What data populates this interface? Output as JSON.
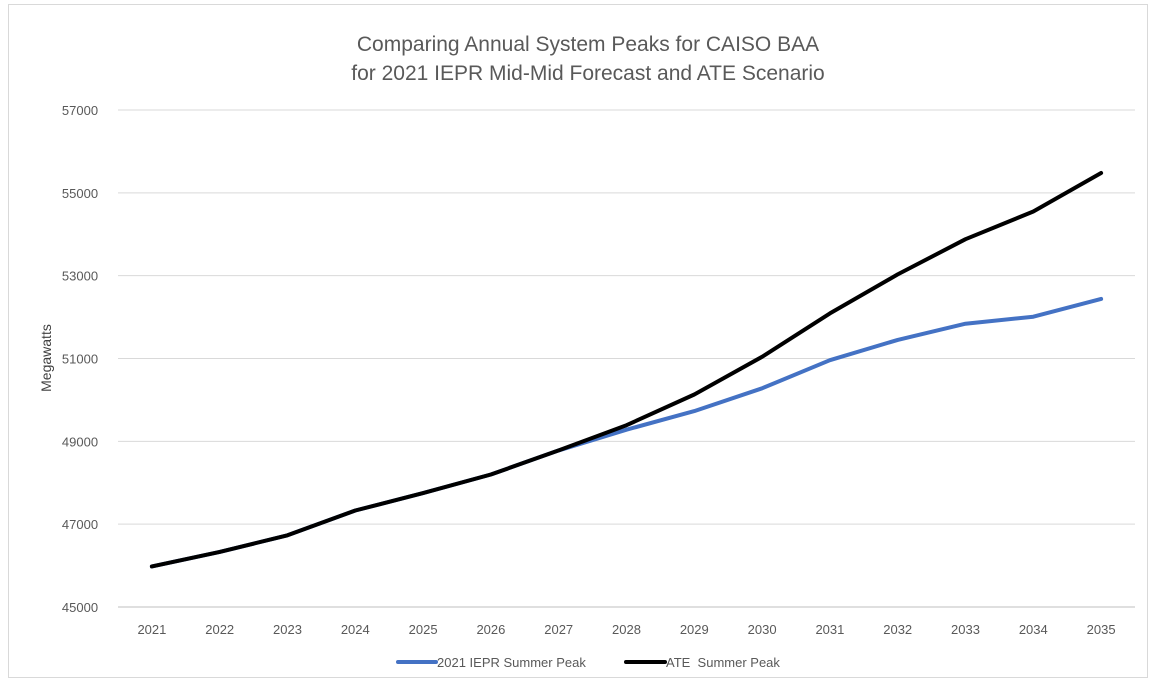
{
  "chart_data": {
    "type": "line",
    "title": [
      "Comparing Annual System Peaks for CAISO BAA",
      "for 2021 IEPR Mid-Mid Forecast and ATE Scenario"
    ],
    "xlabel": "",
    "ylabel": "Megawatts",
    "ylim": [
      45000,
      57000
    ],
    "y_ticks": [
      "45000",
      "47000",
      "49000",
      "51000",
      "53000",
      "55000",
      "57000"
    ],
    "categories": [
      "2021",
      "2022",
      "2023",
      "2024",
      "2025",
      "2026",
      "2027",
      "2028",
      "2029",
      "2030",
      "2031",
      "2032",
      "2033",
      "2034",
      "2035"
    ],
    "grid": "horizontal",
    "legend_position": "bottom",
    "series": [
      {
        "name": "2021 IEPR Summer Peak",
        "color": "#4472c4",
        "values": [
          45980,
          46330,
          46730,
          47330,
          47750,
          48200,
          48780,
          49280,
          49730,
          50280,
          50960,
          51450,
          51840,
          52010,
          52440
        ]
      },
      {
        "name": "ATE  Summer Peak",
        "color": "#000000",
        "values": [
          45980,
          46330,
          46730,
          47330,
          47750,
          48200,
          48780,
          49390,
          50130,
          51040,
          52090,
          53030,
          53880,
          54550,
          55480
        ]
      }
    ]
  }
}
